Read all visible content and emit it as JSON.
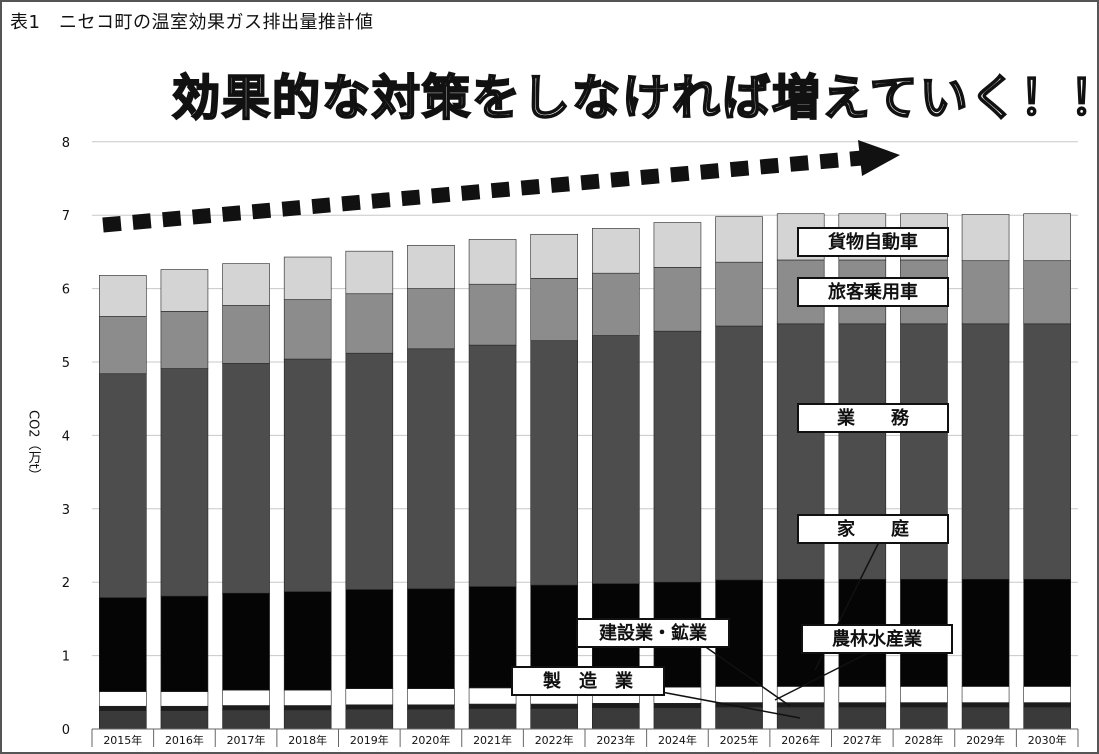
{
  "header": {
    "table_title": "表1　ニセコ町の温室効果ガス排出量推計値",
    "slogan": "効果的な対策をしなければ増えていく！！"
  },
  "chart_data": {
    "type": "bar",
    "stacked": true,
    "ylabel": "CO2（万t）",
    "ylim": [
      0,
      8
    ],
    "yticks": [
      0,
      1,
      2,
      3,
      4,
      5,
      6,
      7,
      8
    ],
    "grid": true,
    "categories": [
      "2015年",
      "2016年",
      "2017年",
      "2018年",
      "2019年",
      "2020年",
      "2021年",
      "2022年",
      "2023年",
      "2024年",
      "2025年",
      "2026年",
      "2027年",
      "2028年",
      "2029年",
      "2030年"
    ],
    "series": [
      {
        "name": "製　造　業",
        "color": "#3a3a3a",
        "values": [
          0.25,
          0.25,
          0.26,
          0.26,
          0.27,
          0.27,
          0.28,
          0.28,
          0.29,
          0.29,
          0.3,
          0.3,
          0.3,
          0.3,
          0.3,
          0.3
        ]
      },
      {
        "name": "農林水産業",
        "color": "#1c1c1c",
        "values": [
          0.06,
          0.06,
          0.06,
          0.06,
          0.06,
          0.06,
          0.06,
          0.06,
          0.06,
          0.06,
          0.06,
          0.06,
          0.06,
          0.06,
          0.06,
          0.06
        ]
      },
      {
        "name": "建設業・鉱業",
        "color": "#ffffff",
        "values": [
          0.2,
          0.2,
          0.21,
          0.21,
          0.22,
          0.22,
          0.22,
          0.22,
          0.22,
          0.22,
          0.22,
          0.22,
          0.22,
          0.22,
          0.22,
          0.22
        ]
      },
      {
        "name": "家　　庭",
        "color": "#050505",
        "values": [
          1.28,
          1.3,
          1.32,
          1.34,
          1.35,
          1.36,
          1.38,
          1.4,
          1.41,
          1.43,
          1.45,
          1.46,
          1.46,
          1.46,
          1.46,
          1.46
        ]
      },
      {
        "name": "業　　務",
        "color": "#4d4d4d",
        "values": [
          3.05,
          3.1,
          3.13,
          3.17,
          3.22,
          3.27,
          3.29,
          3.33,
          3.38,
          3.42,
          3.46,
          3.48,
          3.48,
          3.48,
          3.48,
          3.48
        ]
      },
      {
        "name": "旅客乗用車",
        "color": "#8c8c8c",
        "values": [
          0.78,
          0.78,
          0.79,
          0.81,
          0.81,
          0.82,
          0.83,
          0.85,
          0.85,
          0.87,
          0.87,
          0.87,
          0.87,
          0.87,
          0.86,
          0.86
        ]
      },
      {
        "name": "貨物自動車",
        "color": "#d4d4d4",
        "values": [
          0.56,
          0.57,
          0.57,
          0.58,
          0.58,
          0.59,
          0.61,
          0.6,
          0.61,
          0.61,
          0.62,
          0.63,
          0.63,
          0.63,
          0.63,
          0.64
        ]
      }
    ]
  }
}
